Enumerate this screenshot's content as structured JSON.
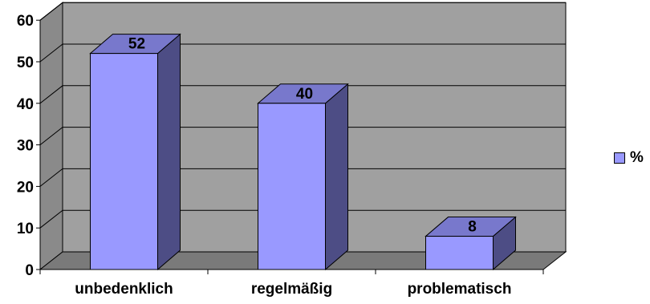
{
  "chart_data": {
    "type": "bar",
    "categories": [
      "unbedenklich",
      "regelmäßig",
      "problematisch"
    ],
    "series": [
      {
        "name": "%",
        "values": [
          52,
          40,
          8
        ]
      }
    ],
    "y_ticks": [
      "0",
      "10",
      "20",
      "30",
      "40",
      "50",
      "60"
    ],
    "ylim": [
      0,
      60
    ],
    "grid": true,
    "legend": "right",
    "data_labels": [
      "52",
      "40",
      "8"
    ],
    "colors": {
      "bar_front": "#9999ff",
      "bar_side": "#4d4d85",
      "bar_top": "#7878cc",
      "plot_back": "#a0a0a0",
      "plot_side": "#8a8a8a",
      "floor": "#7a7a7a"
    }
  }
}
